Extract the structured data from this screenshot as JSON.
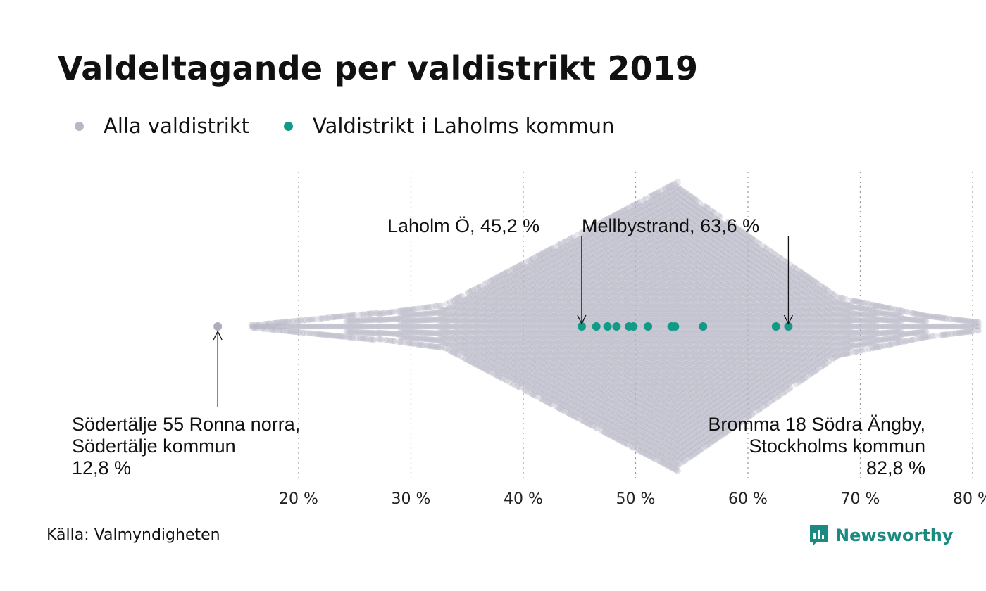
{
  "title": "Valdeltagande per valdistrikt 2019",
  "legend": [
    {
      "label": "Alla valdistrikt",
      "color": "#b9b6c6"
    },
    {
      "label": "Valdistrikt i Laholms kommun",
      "color": "#129a87"
    }
  ],
  "annotations": {
    "laholm": "Laholm Ö, 45,2 %",
    "mellby": "Mellbystrand, 63,6 %",
    "min_line1": "Södertälje 55 Ronna norra,",
    "min_line2": "Södertälje kommun",
    "min_line3": "12,8 %",
    "max_line1": "Bromma 18 Södra Ängby,",
    "max_line2": "Stockholms kommun",
    "max_line3": "82,8 %"
  },
  "source": "Källa: Valmyndigheten",
  "brand": "Newsworthy",
  "chart_data": {
    "type": "scatter",
    "xlim": [
      12,
      84
    ],
    "ticks": [
      20,
      30,
      40,
      50,
      60,
      70,
      80
    ],
    "tick_labels": [
      "20 %",
      "30 %",
      "40 %",
      "50 %",
      "60 %",
      "70 %",
      "80 %"
    ],
    "grid": "vertical dotted",
    "series": [
      {
        "name": "Alla valdistrikt",
        "color": "#b9b6c6",
        "note": "",
        "min": 12.8,
        "max": 82.8,
        "peak": 53.8
      },
      {
        "name": "Valdistrikt i Laholms kommun",
        "color": "#129a87",
        "values": [
          45.2,
          46.5,
          47.5,
          48.3,
          49.4,
          49.8,
          51.1,
          53.2,
          53.5,
          56.0,
          62.5,
          63.6
        ]
      }
    ],
    "highlights": [
      {
        "label": "Södertälje 55 Ronna norra, Södertälje kommun",
        "value": 12.8
      },
      {
        "label": "Bromma 18 Södra Ängby, Stockholms kommun",
        "value": 82.8
      },
      {
        "label": "Laholm Ö",
        "value": 45.2
      },
      {
        "label": "Mellbystrand",
        "value": 63.6
      }
    ]
  }
}
